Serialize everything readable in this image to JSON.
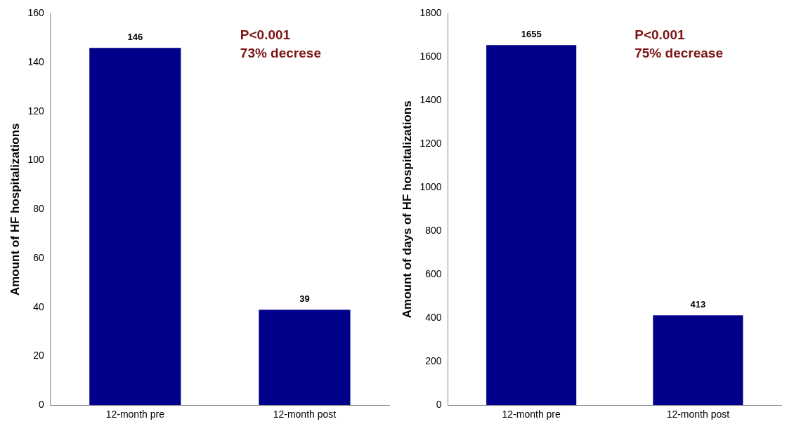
{
  "chart_data": [
    {
      "type": "bar",
      "ylabel": "Amount of HF hospitalizations",
      "categories": [
        "12-month pre",
        "12-month post"
      ],
      "values": [
        146,
        39
      ],
      "color": "#00008b",
      "ylim": [
        0,
        160
      ],
      "yticks": [
        0,
        20,
        40,
        60,
        80,
        100,
        120,
        140,
        160
      ],
      "grid": false,
      "legend": false,
      "data_labels": true,
      "annotations": [
        "P<0.001",
        "73% decrese"
      ]
    },
    {
      "type": "bar",
      "ylabel": "Amount of days of HF hospitalizations",
      "categories": [
        "12-month pre",
        "12-month post"
      ],
      "values": [
        1655,
        413
      ],
      "color": "#00008b",
      "ylim": [
        0,
        1800
      ],
      "yticks": [
        0,
        200,
        400,
        600,
        800,
        1000,
        1200,
        1400,
        1600,
        1800
      ],
      "grid": false,
      "legend": false,
      "data_labels": true,
      "annotations": [
        "P<0.001",
        "75% decrease"
      ]
    }
  ]
}
